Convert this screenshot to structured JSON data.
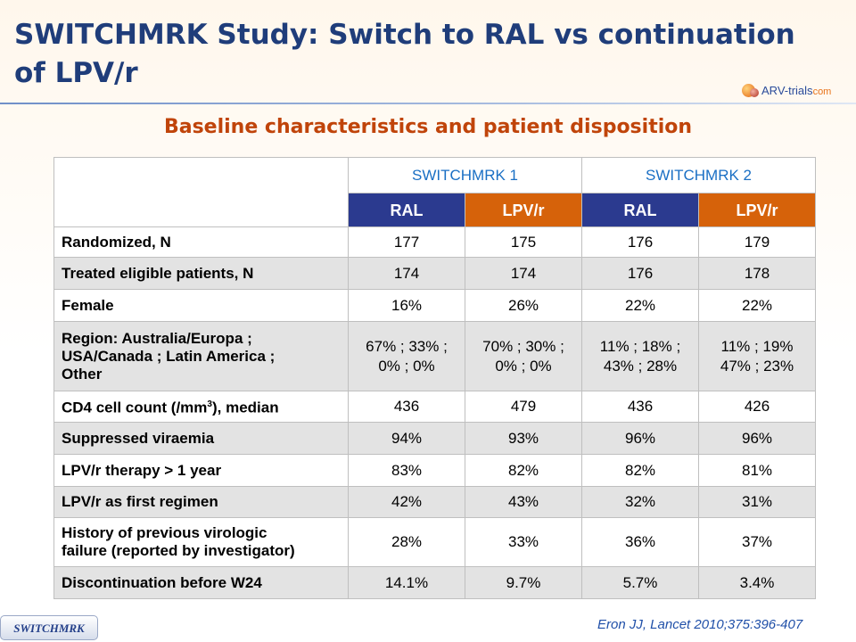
{
  "title": "SWITCHMRK Study: Switch to RAL vs continuation of LPV/r",
  "logo": {
    "name": "ARV-trials",
    "domain": "com"
  },
  "subtitle": "Baseline characteristics and patient disposition",
  "table": {
    "studies": [
      "SWITCHMRK 1",
      "SWITCHMRK 2"
    ],
    "arms": [
      "RAL",
      "LPV/r",
      "RAL",
      "LPV/r"
    ],
    "rows": [
      {
        "label": "Randomized, N",
        "values": [
          "177",
          "175",
          "176",
          "179"
        ]
      },
      {
        "label": "Treated eligible patients, N",
        "values": [
          "174",
          "174",
          "176",
          "178"
        ]
      },
      {
        "label": "Female",
        "values": [
          "16%",
          "26%",
          "22%",
          "22%"
        ]
      },
      {
        "label_lines": [
          "Region: Australia/Europa ;",
          "USA/Canada ; Latin America ;",
          "Other"
        ],
        "value_lines": [
          [
            "67% ; 33% ;",
            "0% ; 0%"
          ],
          [
            "70% ; 30% ;",
            "0% ; 0%"
          ],
          [
            "11% ; 18% ;",
            "43% ; 28%"
          ],
          [
            "11% ; 19%",
            "47% ; 23%"
          ]
        ]
      },
      {
        "label_prefix": "CD4 cell count (/mm",
        "label_sup": "3",
        "label_suffix": "), median",
        "values": [
          "436",
          "479",
          "436",
          "426"
        ]
      },
      {
        "label": "Suppressed viraemia",
        "values": [
          "94%",
          "93%",
          "96%",
          "96%"
        ]
      },
      {
        "label": "LPV/r therapy > 1 year",
        "values": [
          "83%",
          "82%",
          "82%",
          "81%"
        ]
      },
      {
        "label": "LPV/r as first regimen",
        "values": [
          "42%",
          "43%",
          "32%",
          "31%"
        ]
      },
      {
        "label_lines": [
          "History of previous virologic",
          "failure (reported by investigator)"
        ],
        "values": [
          "28%",
          "33%",
          "36%",
          "37%"
        ]
      },
      {
        "label": "Discontinuation before W24",
        "values": [
          "14.1%",
          "9.7%",
          "5.7%",
          "3.4%"
        ]
      }
    ]
  },
  "badge": "SWITCHMRK",
  "citation": "Eron JJ, Lancet 2010;375:396-407",
  "colors": {
    "title": "#1f3d7a",
    "subtitle": "#c0440a",
    "ral": "#2b3a8f",
    "lpv": "#d6620a",
    "study_header": "#1a6fc4"
  }
}
